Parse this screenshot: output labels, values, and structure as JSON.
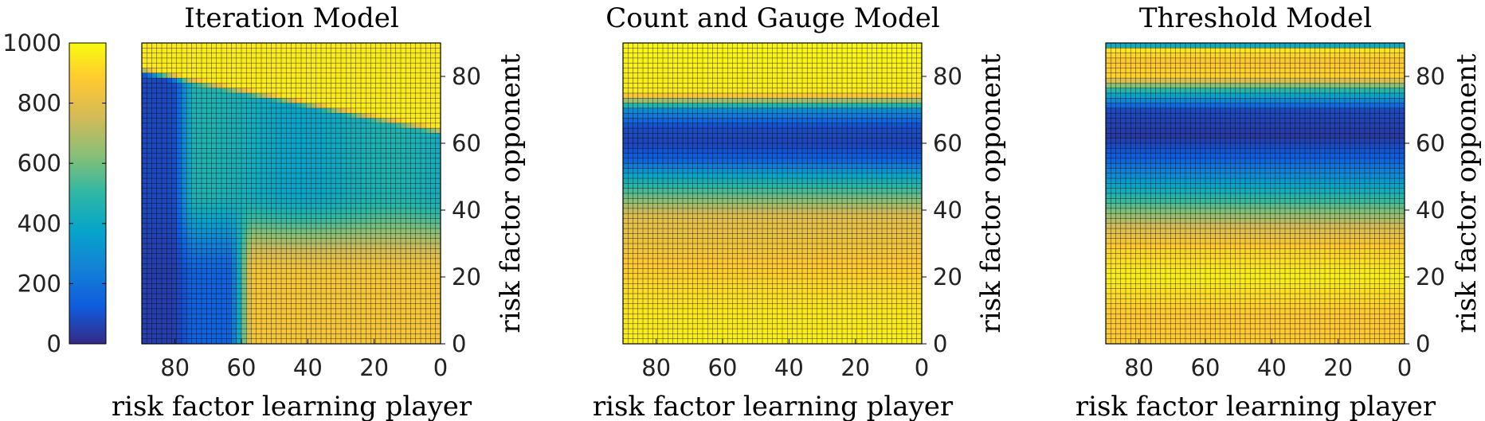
{
  "colorbar": {
    "ticks": [
      0,
      200,
      400,
      600,
      800,
      1000
    ],
    "tick_labels": [
      "0",
      "200",
      "400",
      "600",
      "800",
      "1000"
    ],
    "range": [
      0,
      1000
    ],
    "colormap": "parula",
    "colors": [
      "#352a87",
      "#0f5cdd",
      "#1481d6",
      "#06a4ca",
      "#2eb7a4",
      "#87bf77",
      "#d1bb59",
      "#fec832",
      "#f9fb0e"
    ]
  },
  "chart_data": [
    {
      "type": "heatmap",
      "title": "Iteration Model",
      "xlabel": "risk factor learning player",
      "ylabel": "risk factor opponent",
      "xlim": [
        90,
        0
      ],
      "x_reversed": true,
      "ylim": [
        0,
        90
      ],
      "xticks": [
        "80",
        "60",
        "40",
        "20",
        "0"
      ],
      "yticks": [
        "0",
        "20",
        "40",
        "60",
        "80"
      ],
      "clim": [
        0,
        1000
      ],
      "grid": true,
      "value_regions": [
        {
          "region": "opponent risk > 65",
          "value": 950
        },
        {
          "region": "learning player risk > 75, opponent risk < 65",
          "value": 50
        },
        {
          "region": "opponent risk 30-60, learning player risk 0-70",
          "value": 420
        },
        {
          "region": "opponent risk < 25, learning player risk < 65",
          "value": 850
        }
      ]
    },
    {
      "type": "heatmap",
      "title": "Count and Gauge Model",
      "xlabel": "risk factor learning player",
      "ylabel": "risk factor opponent",
      "xlim": [
        90,
        0
      ],
      "x_reversed": true,
      "ylim": [
        0,
        90
      ],
      "xticks": [
        "80",
        "60",
        "40",
        "20",
        "0"
      ],
      "yticks": [
        "0",
        "20",
        "40",
        "60",
        "80"
      ],
      "clim": [
        0,
        1000
      ],
      "grid": true,
      "y_profile": [
        {
          "y": 0,
          "value": 970
        },
        {
          "y": 10,
          "value": 950
        },
        {
          "y": 20,
          "value": 900
        },
        {
          "y": 30,
          "value": 830
        },
        {
          "y": 38,
          "value": 790
        },
        {
          "y": 45,
          "value": 560
        },
        {
          "y": 50,
          "value": 400
        },
        {
          "y": 55,
          "value": 150
        },
        {
          "y": 60,
          "value": 70
        },
        {
          "y": 65,
          "value": 90
        },
        {
          "y": 70,
          "value": 300
        },
        {
          "y": 75,
          "value": 960
        },
        {
          "y": 90,
          "value": 990
        }
      ]
    },
    {
      "type": "heatmap",
      "title": "Threshold Model",
      "xlabel": "risk factor learning player",
      "ylabel": "risk factor opponent",
      "xlim": [
        90,
        0
      ],
      "x_reversed": true,
      "ylim": [
        0,
        90
      ],
      "xticks": [
        "80",
        "60",
        "40",
        "20",
        "0"
      ],
      "yticks": [
        "0",
        "20",
        "40",
        "60",
        "80"
      ],
      "clim": [
        0,
        1000
      ],
      "grid": true,
      "y_profile": [
        {
          "y": 0,
          "value": 880
        },
        {
          "y": 8,
          "value": 870
        },
        {
          "y": 12,
          "value": 900
        },
        {
          "y": 20,
          "value": 970
        },
        {
          "y": 28,
          "value": 900
        },
        {
          "y": 35,
          "value": 760
        },
        {
          "y": 42,
          "value": 540
        },
        {
          "y": 50,
          "value": 300
        },
        {
          "y": 55,
          "value": 150
        },
        {
          "y": 62,
          "value": 40
        },
        {
          "y": 70,
          "value": 80
        },
        {
          "y": 76,
          "value": 500
        },
        {
          "y": 80,
          "value": 900
        },
        {
          "y": 85,
          "value": 870
        },
        {
          "y": 88,
          "value": 950
        },
        {
          "y": 90,
          "value": 100
        }
      ]
    }
  ]
}
